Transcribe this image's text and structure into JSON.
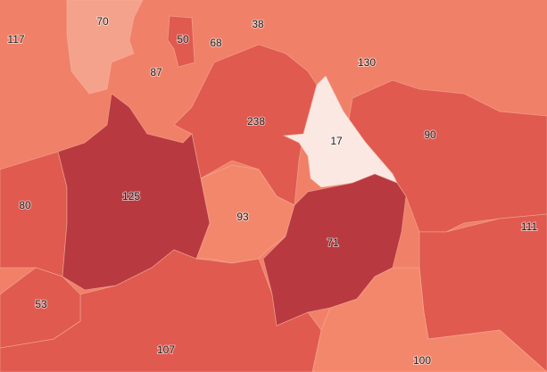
{
  "colors": {
    "background": "#f08068",
    "pale": "#f4a28c",
    "light": "#f3876c",
    "medium": "#e05a4f",
    "dark": "#b83a40",
    "lightest": "#fbe8e2"
  },
  "regions": [
    {
      "value": "117",
      "shade": "light"
    },
    {
      "value": "70",
      "shade": "pale"
    },
    {
      "value": "50",
      "shade": "medium"
    },
    {
      "value": "68",
      "shade": "light"
    },
    {
      "value": "38",
      "shade": "light"
    },
    {
      "value": "87",
      "shade": "light"
    },
    {
      "value": "130",
      "shade": "light"
    },
    {
      "value": "238",
      "shade": "medium"
    },
    {
      "value": "17",
      "shade": "lightest"
    },
    {
      "value": "90",
      "shade": "medium"
    },
    {
      "value": "125",
      "shade": "dark"
    },
    {
      "value": "80",
      "shade": "medium"
    },
    {
      "value": "93",
      "shade": "light"
    },
    {
      "value": "71",
      "shade": "dark"
    },
    {
      "value": "111",
      "shade": "medium"
    },
    {
      "value": "53",
      "shade": "medium"
    },
    {
      "value": "107",
      "shade": "medium"
    },
    {
      "value": "100",
      "shade": "light"
    }
  ]
}
